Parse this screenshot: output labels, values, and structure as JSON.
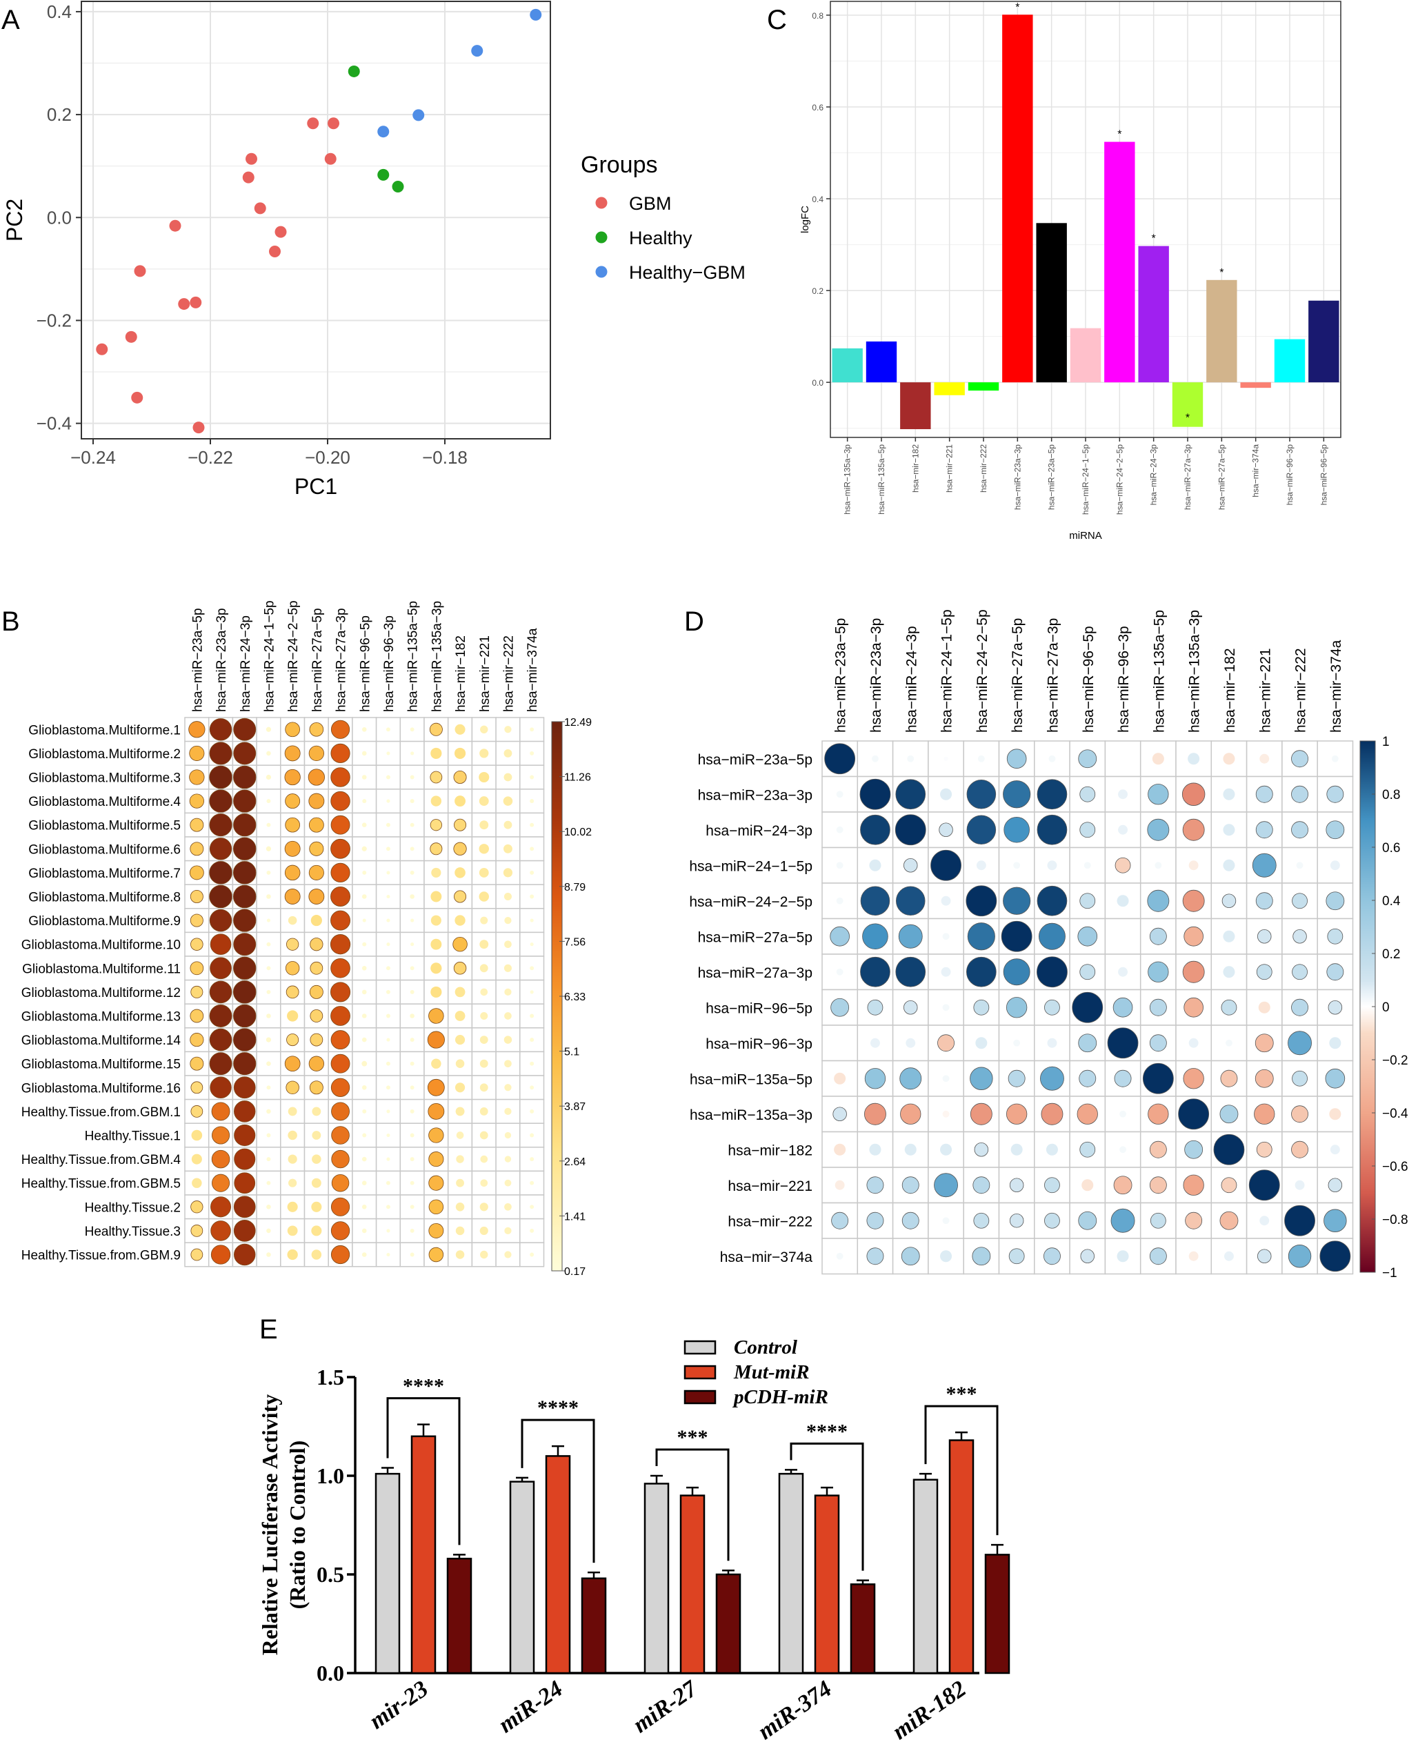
{
  "panels": {
    "A": "A",
    "B": "B",
    "C": "C",
    "D": "D",
    "E": "E"
  },
  "colors": {
    "gbm": "#e8615c",
    "healthy": "#1ea51e",
    "healthy_gbm": "#4f8de6",
    "panel_bg": "#ffffff",
    "grid": "#e3e3e3",
    "ctrl": "#d4d4d4",
    "mut": "#dd4322",
    "pcdh": "#6b0a08"
  },
  "chart_data": [
    {
      "id": "A",
      "type": "scatter",
      "xlabel": "PC1",
      "ylabel": "PC2",
      "xlim": [
        -0.242,
        -0.162
      ],
      "ylim": [
        -0.43,
        0.42
      ],
      "xticks": [
        -0.24,
        -0.22,
        -0.2,
        -0.18
      ],
      "xtick_labels": [
        "−0.24",
        "−0.22",
        "−0.20",
        "−0.18"
      ],
      "yticks": [
        -0.4,
        -0.2,
        0.0,
        0.2,
        0.4
      ],
      "ytick_labels": [
        "−0.4",
        "−0.2",
        "0.0",
        "0.2",
        "0.4"
      ],
      "legend": {
        "title": "Groups",
        "position": "right",
        "entries": [
          "GBM",
          "Healthy",
          "Healthy−GBM"
        ]
      },
      "series": [
        {
          "name": "GBM",
          "points": [
            [
              -0.2385,
              -0.256
            ],
            [
              -0.2335,
              -0.232
            ],
            [
              -0.2325,
              -0.35
            ],
            [
              -0.232,
              -0.104
            ],
            [
              -0.226,
              -0.016
            ],
            [
              -0.2245,
              -0.168
            ],
            [
              -0.2225,
              -0.165
            ],
            [
              -0.222,
              -0.408
            ],
            [
              -0.2135,
              0.078
            ],
            [
              -0.213,
              0.114
            ],
            [
              -0.2115,
              0.018
            ],
            [
              -0.209,
              -0.066
            ],
            [
              -0.208,
              -0.028
            ],
            [
              -0.2025,
              0.183
            ],
            [
              -0.1995,
              0.114
            ],
            [
              -0.199,
              0.183
            ]
          ]
        },
        {
          "name": "Healthy",
          "points": [
            [
              -0.1955,
              0.284
            ],
            [
              -0.1905,
              0.083
            ],
            [
              -0.188,
              0.06
            ]
          ]
        },
        {
          "name": "Healthy−GBM",
          "points": [
            [
              -0.1905,
              0.167
            ],
            [
              -0.1845,
              0.199
            ],
            [
              -0.1745,
              0.324
            ],
            [
              -0.1645,
              0.394
            ]
          ]
        }
      ]
    },
    {
      "id": "B",
      "type": "heatmap",
      "columns": [
        "hsa−miR−23a−5p",
        "hsa−miR−23a−3p",
        "hsa−miR−24−3p",
        "hsa−miR−24−1−5p",
        "hsa−miR−24−2−5p",
        "hsa−miR−27a−5p",
        "hsa−miR−27a−3p",
        "hsa−miR−96−5p",
        "hsa−miR−96−3p",
        "hsa−miR−135a−5p",
        "hsa−miR−135a−3p",
        "hsa−mir−182",
        "hsa−mir−221",
        "hsa−mir−222",
        "hsa−mir−374a"
      ],
      "rows": [
        "Glioblastoma.Multiforme.1",
        "Glioblastoma.Multiforme.2",
        "Glioblastoma.Multiforme.3",
        "Glioblastoma.Multiforme.4",
        "Glioblastoma.Multiforme.5",
        "Glioblastoma.Multiforme.6",
        "Glioblastoma.Multiforme.7",
        "Glioblastoma.Multiforme.8",
        "Glioblastoma.Multiforme.9",
        "Glioblastoma.Multiforme.10",
        "Glioblastoma.Multiforme.11",
        "Glioblastoma.Multiforme.12",
        "Glioblastoma.Multiforme.13",
        "Glioblastoma.Multiforme.14",
        "Glioblastoma.Multiforme.15",
        "Glioblastoma.Multiforme.16",
        "Healthy.Tissue.from.GBM.1",
        "Healthy.Tissue.1",
        "Healthy.Tissue.from.GBM.4",
        "Healthy.Tissue.from.GBM.5",
        "Healthy.Tissue.2",
        "Healthy.Tissue.3",
        "Healthy.Tissue.from.GBM.9"
      ],
      "colorbar": {
        "min": 0.17,
        "max": 12.49,
        "tick_labels": [
          "12.49",
          "11.26",
          "10.02",
          "8.79",
          "7.56",
          "6.33",
          "5.1",
          "3.87",
          "2.64",
          "1.41",
          "0.17"
        ]
      },
      "values": [
        [
          6.3,
          11.5,
          11.8,
          0.6,
          5.0,
          4.5,
          8.0,
          0.5,
          0.4,
          0.4,
          3.8,
          2.6,
          1.5,
          1.2,
          0.4
        ],
        [
          5.2,
          11.9,
          11.8,
          0.5,
          5.6,
          5.3,
          8.6,
          0.5,
          0.3,
          0.3,
          3.0,
          3.0,
          2.0,
          1.6,
          0.4
        ],
        [
          5.3,
          12.3,
          12.2,
          0.6,
          5.8,
          6.3,
          8.8,
          0.5,
          0.4,
          0.4,
          3.3,
          3.8,
          2.6,
          1.6,
          0.4
        ],
        [
          4.8,
          12.2,
          12.1,
          0.4,
          5.1,
          5.6,
          8.8,
          0.4,
          0.3,
          0.4,
          2.7,
          2.9,
          2.2,
          2.1,
          0.4
        ],
        [
          4.2,
          12.0,
          12.1,
          0.4,
          5.0,
          5.1,
          8.4,
          0.5,
          0.4,
          0.4,
          3.1,
          3.4,
          1.9,
          1.6,
          0.4
        ],
        [
          4.2,
          11.4,
          12.2,
          0.6,
          5.6,
          4.7,
          9.0,
          0.6,
          0.4,
          0.4,
          3.4,
          3.9,
          2.4,
          1.9,
          0.4
        ],
        [
          4.6,
          12.3,
          12.3,
          0.4,
          5.4,
          5.2,
          8.6,
          0.4,
          0.3,
          0.4,
          2.3,
          2.8,
          2.2,
          2.0,
          0.4
        ],
        [
          3.8,
          12.3,
          12.3,
          0.5,
          5.6,
          5.6,
          9.1,
          0.5,
          0.3,
          0.5,
          2.9,
          3.4,
          2.4,
          1.4,
          0.4
        ],
        [
          3.8,
          11.5,
          12.1,
          0.3,
          1.8,
          3.0,
          9.1,
          0.3,
          0.3,
          0.3,
          2.6,
          2.7,
          1.4,
          1.2,
          0.3
        ],
        [
          3.6,
          10.2,
          11.8,
          0.4,
          3.5,
          3.9,
          9.3,
          0.4,
          0.3,
          0.3,
          2.9,
          4.9,
          1.9,
          1.3,
          0.3
        ],
        [
          4.1,
          11.0,
          12.1,
          0.4,
          4.4,
          3.7,
          8.9,
          0.5,
          0.4,
          0.4,
          3.0,
          3.6,
          1.6,
          1.4,
          0.4
        ],
        [
          3.4,
          11.6,
          12.3,
          0.4,
          3.7,
          4.2,
          9.2,
          0.5,
          0.4,
          0.4,
          3.0,
          2.5,
          1.3,
          1.2,
          0.3
        ],
        [
          4.1,
          11.8,
          12.2,
          0.5,
          3.0,
          3.7,
          9.0,
          0.5,
          0.4,
          0.5,
          5.4,
          2.5,
          1.4,
          1.3,
          0.4
        ],
        [
          4.3,
          11.6,
          12.2,
          0.6,
          3.4,
          3.7,
          8.4,
          0.5,
          0.3,
          0.4,
          6.8,
          2.3,
          1.6,
          1.5,
          0.4
        ],
        [
          4.2,
          11.8,
          12.0,
          0.5,
          5.5,
          5.3,
          8.4,
          0.7,
          0.4,
          0.4,
          2.4,
          1.8,
          1.6,
          1.3,
          0.4
        ],
        [
          3.3,
          10.8,
          11.0,
          0.4,
          4.0,
          4.2,
          8.1,
          0.5,
          0.4,
          0.4,
          6.6,
          2.3,
          1.6,
          1.2,
          0.4
        ],
        [
          3.3,
          7.8,
          10.8,
          0.5,
          1.9,
          1.9,
          7.8,
          0.4,
          0.3,
          0.4,
          6.1,
          1.9,
          1.6,
          1.2,
          0.4
        ],
        [
          2.8,
          7.3,
          10.6,
          0.4,
          2.1,
          1.9,
          7.6,
          0.4,
          0.3,
          0.4,
          5.3,
          1.3,
          1.6,
          1.0,
          0.4
        ],
        [
          2.6,
          7.6,
          10.5,
          0.4,
          2.0,
          2.1,
          7.5,
          0.5,
          0.3,
          0.4,
          5.2,
          1.5,
          1.3,
          1.0,
          0.4
        ],
        [
          2.4,
          7.3,
          10.3,
          0.4,
          1.7,
          2.2,
          7.0,
          0.5,
          0.4,
          0.4,
          5.2,
          1.6,
          1.3,
          1.1,
          0.4
        ],
        [
          3.5,
          9.8,
          11.0,
          0.5,
          2.6,
          2.6,
          8.0,
          0.5,
          0.4,
          0.4,
          4.9,
          1.8,
          1.7,
          1.3,
          0.4
        ],
        [
          3.3,
          9.5,
          11.0,
          0.5,
          2.5,
          2.6,
          8.1,
          0.5,
          0.3,
          0.4,
          5.1,
          1.8,
          1.7,
          1.2,
          0.4
        ],
        [
          3.3,
          8.7,
          10.8,
          0.5,
          2.7,
          2.4,
          8.0,
          0.5,
          0.3,
          0.4,
          4.9,
          1.8,
          1.5,
          1.2,
          0.4
        ]
      ]
    },
    {
      "id": "C",
      "type": "bar",
      "xlabel": "miRNA",
      "ylabel": "logFC",
      "ylim": [
        -0.12,
        0.83
      ],
      "yticks": [
        0.0,
        0.2,
        0.4,
        0.6,
        0.8
      ],
      "ytick_labels": [
        "0.0",
        "0.2",
        "0.4",
        "0.6",
        "0.8"
      ],
      "categories": [
        "hsa−miR−135a−3p",
        "hsa−miR−135a−5p",
        "hsa−mir−182",
        "hsa−mir−221",
        "hsa−mir−222",
        "hsa−miR−23a−3p",
        "hsa−miR−23a−5p",
        "hsa−miR−24−1−5p",
        "hsa−miR−24−2−5p",
        "hsa−miR−24−3p",
        "hsa−miR−27a−3p",
        "hsa−miR−27a−5p",
        "hsa−mir−374a",
        "hsa−miR−96−3p",
        "hsa−miR−96−5p"
      ],
      "values": [
        0.074,
        0.089,
        -0.102,
        -0.028,
        -0.018,
        0.801,
        0.347,
        0.118,
        0.524,
        0.297,
        -0.097,
        0.223,
        -0.012,
        0.094,
        0.178
      ],
      "bar_colors": [
        "#40e0d0",
        "#0000ff",
        "#a52a2a",
        "#ffff00",
        "#00ff00",
        "#ff0000",
        "#000000",
        "#ffc0cb",
        "#ff00ff",
        "#a020f0",
        "#adff2f",
        "#d2b48c",
        "#fa8072",
        "#00ffff",
        "#191970"
      ],
      "significant": [
        "",
        "",
        "",
        "",
        "",
        "*",
        "",
        "",
        "*",
        "*",
        "*",
        "*",
        "",
        "",
        ""
      ]
    },
    {
      "id": "D",
      "type": "heatmap",
      "labels": [
        "hsa−miR−23a−5p",
        "hsa−miR−23a−3p",
        "hsa−miR−24−3p",
        "hsa−miR−24−1−5p",
        "hsa−miR−24−2−5p",
        "hsa−miR−27a−5p",
        "hsa−miR−27a−3p",
        "hsa−miR−96−5p",
        "hsa−miR−96−3p",
        "hsa−miR−135a−5p",
        "hsa−miR−135a−3p",
        "hsa−mir−182",
        "hsa−mir−221",
        "hsa−mir−222",
        "hsa−mir−374a"
      ],
      "colorbar": {
        "min": -1,
        "max": 1,
        "tick_labels": [
          "1",
          "0.8",
          "0.6",
          "0.4",
          "0.2",
          "0",
          "−0.2",
          "−0.4",
          "−0.6",
          "−0.8",
          "−1"
        ]
      },
      "matrix": [
        [
          1.0,
          0.05,
          0.05,
          0.02,
          0.05,
          0.4,
          0.05,
          0.35,
          0.0,
          -0.15,
          0.15,
          -0.15,
          -0.1,
          0.3,
          0.05
        ],
        [
          0.05,
          1.0,
          0.95,
          0.15,
          0.9,
          0.8,
          0.95,
          0.25,
          0.1,
          0.45,
          -0.55,
          0.15,
          0.3,
          0.3,
          0.3
        ],
        [
          0.05,
          0.95,
          1.0,
          0.2,
          0.9,
          0.7,
          0.95,
          0.25,
          0.1,
          0.5,
          -0.5,
          0.15,
          0.3,
          0.3,
          0.35
        ],
        [
          0.05,
          0.15,
          0.2,
          1.0,
          0.1,
          0.05,
          0.1,
          0.05,
          -0.25,
          0.05,
          -0.1,
          0.15,
          0.6,
          0.05,
          0.1
        ],
        [
          0.05,
          0.9,
          0.9,
          0.1,
          1.0,
          0.8,
          0.95,
          0.25,
          0.15,
          0.5,
          -0.5,
          0.2,
          0.3,
          0.25,
          0.35
        ],
        [
          0.4,
          0.7,
          0.6,
          0.05,
          0.8,
          1.0,
          0.75,
          0.4,
          0.0,
          0.3,
          -0.4,
          0.15,
          0.2,
          0.2,
          0.25
        ],
        [
          0.05,
          0.95,
          0.95,
          0.1,
          0.95,
          0.75,
          1.0,
          0.25,
          0.1,
          0.45,
          -0.5,
          0.15,
          0.25,
          0.25,
          0.3
        ],
        [
          0.35,
          0.25,
          0.2,
          0.05,
          0.25,
          0.45,
          0.25,
          1.0,
          0.4,
          0.3,
          -0.4,
          0.25,
          -0.15,
          0.3,
          0.2
        ],
        [
          0.0,
          0.1,
          0.1,
          -0.3,
          0.15,
          0.05,
          0.1,
          0.35,
          1.0,
          0.3,
          0.1,
          0.05,
          -0.35,
          0.6,
          0.15
        ],
        [
          -0.15,
          0.45,
          0.5,
          0.05,
          0.55,
          0.3,
          0.6,
          0.3,
          0.3,
          1.0,
          -0.45,
          -0.3,
          -0.35,
          0.25,
          0.4
        ],
        [
          0.2,
          -0.5,
          -0.45,
          -0.05,
          -0.5,
          -0.45,
          -0.5,
          -0.45,
          0.05,
          -0.45,
          1.0,
          0.35,
          -0.45,
          -0.3,
          -0.15
        ],
        [
          -0.15,
          0.15,
          0.15,
          0.15,
          0.2,
          0.15,
          0.15,
          0.25,
          0.05,
          -0.3,
          0.35,
          1.0,
          -0.25,
          -0.3,
          0.1
        ],
        [
          -0.1,
          0.3,
          0.3,
          0.6,
          0.3,
          0.2,
          0.25,
          -0.15,
          -0.35,
          -0.3,
          -0.45,
          -0.25,
          1.0,
          0.1,
          0.2
        ],
        [
          0.3,
          0.3,
          0.3,
          0.05,
          0.25,
          0.2,
          0.25,
          0.35,
          0.6,
          0.25,
          -0.3,
          -0.35,
          0.1,
          1.0,
          0.55
        ],
        [
          0.05,
          0.3,
          0.35,
          0.15,
          0.35,
          0.25,
          0.3,
          0.2,
          0.15,
          0.3,
          -0.1,
          0.1,
          0.2,
          0.55,
          1.0
        ]
      ]
    },
    {
      "id": "E",
      "type": "bar",
      "ylabel_line1": "Relative Luciferase Activity",
      "ylabel_line2": "(Ratio to Control)",
      "ylim": [
        0,
        1.5
      ],
      "yticks": [
        0.0,
        0.5,
        1.0,
        1.5
      ],
      "ytick_labels": [
        "0.0",
        "0.5",
        "1.0",
        "1.5"
      ],
      "categories": [
        "mir-23",
        "miR-24",
        "miR-27",
        "miR-374",
        "miR-182"
      ],
      "series": [
        {
          "name": "Control",
          "values": [
            1.01,
            0.97,
            0.96,
            1.01,
            0.98
          ],
          "errors": [
            0.03,
            0.02,
            0.04,
            0.02,
            0.03
          ]
        },
        {
          "name": "Mut-miR",
          "values": [
            1.2,
            1.1,
            0.9,
            0.9,
            1.18
          ],
          "errors": [
            0.06,
            0.05,
            0.04,
            0.04,
            0.04
          ]
        },
        {
          "name": "pCDH-miR",
          "values": [
            0.58,
            0.48,
            0.5,
            0.45,
            0.6
          ],
          "errors": [
            0.02,
            0.03,
            0.02,
            0.02,
            0.05
          ]
        }
      ],
      "significance": [
        "****",
        "****",
        "***",
        "****",
        "***"
      ]
    }
  ]
}
